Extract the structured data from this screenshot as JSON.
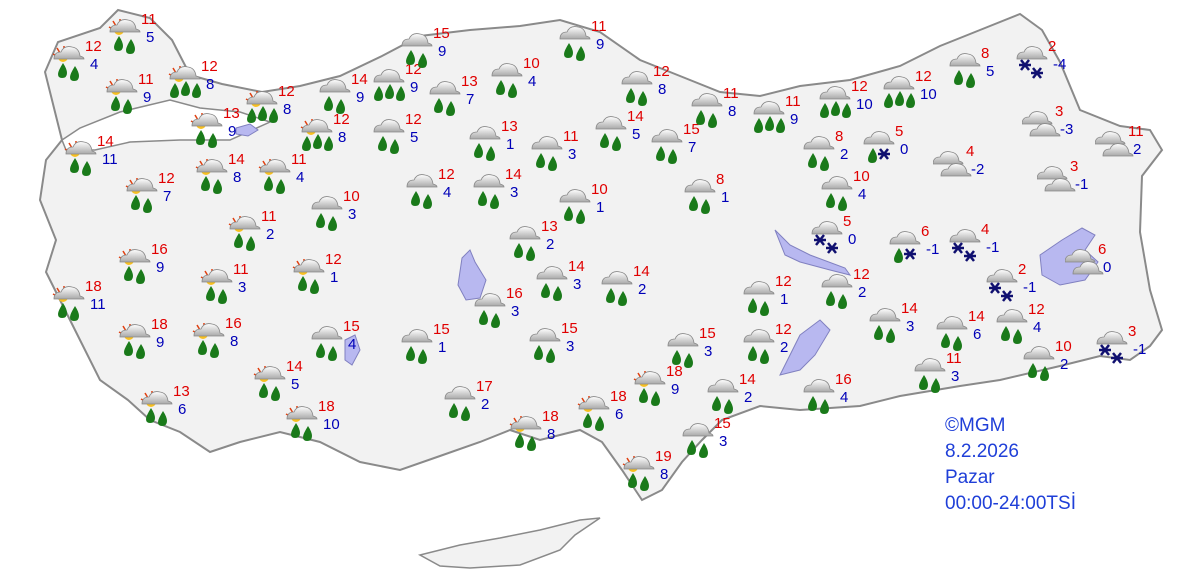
{
  "info": {
    "copyright": "©MGM",
    "date": "8.2.2026",
    "day": "Pazar",
    "period": "00:00-24:00TSİ"
  },
  "colors": {
    "max": "#e00000",
    "min": "#0000b8",
    "land": "#f2f2f2",
    "border": "#888888",
    "lake": "#b8b8f0",
    "drop": "#1a7a1a",
    "snow": "#101070"
  },
  "stations": [
    {
      "icon": "partly-cloudy-rain",
      "max": "11",
      "min": "5"
    },
    {
      "icon": "partly-cloudy-rain",
      "max": "12",
      "min": "4"
    },
    {
      "icon": "partly-cloudy-rain",
      "max": "11",
      "min": "9"
    },
    {
      "icon": "partly-cloudy-heavy-rain",
      "max": "12",
      "min": "8"
    },
    {
      "icon": "partly-cloudy-rain",
      "max": "13",
      "min": "9"
    },
    {
      "icon": "partly-cloudy-heavy-rain",
      "max": "12",
      "min": "8"
    },
    {
      "icon": "partly-cloudy-rain",
      "max": "14",
      "min": "11"
    },
    {
      "icon": "partly-cloudy-rain",
      "max": "12",
      "min": "7"
    },
    {
      "icon": "partly-cloudy-rain",
      "max": "14",
      "min": "8"
    },
    {
      "icon": "partly-cloudy-rain",
      "max": "11",
      "min": "4"
    },
    {
      "icon": "partly-cloudy-heavy-rain",
      "max": "12",
      "min": "8"
    },
    {
      "icon": "rain",
      "max": "14",
      "min": "9"
    },
    {
      "icon": "heavy-rain",
      "max": "12",
      "min": "9"
    },
    {
      "icon": "rain",
      "max": "15",
      "min": "9"
    },
    {
      "icon": "rain",
      "max": "13",
      "min": "7"
    },
    {
      "icon": "rain",
      "max": "10",
      "min": "4"
    },
    {
      "icon": "rain",
      "max": "12",
      "min": "5"
    },
    {
      "icon": "rain",
      "max": "13",
      "min": "1"
    },
    {
      "icon": "rain",
      "max": "11",
      "min": "3"
    },
    {
      "icon": "rain",
      "max": "11",
      "min": "9"
    },
    {
      "icon": "rain",
      "max": "12",
      "min": "8"
    },
    {
      "icon": "rain",
      "max": "14",
      "min": "5"
    },
    {
      "icon": "rain",
      "max": "15",
      "min": "7"
    },
    {
      "icon": "rain",
      "max": "11",
      "min": "8"
    },
    {
      "icon": "heavy-rain",
      "max": "11",
      "min": "9"
    },
    {
      "icon": "heavy-rain",
      "max": "12",
      "min": "10"
    },
    {
      "icon": "heavy-rain",
      "max": "12",
      "min": "10"
    },
    {
      "icon": "rain",
      "max": "8",
      "min": "5"
    },
    {
      "icon": "snow",
      "max": "2",
      "min": "-4"
    },
    {
      "icon": "rain",
      "max": "8",
      "min": "2"
    },
    {
      "icon": "rain-snow",
      "max": "5",
      "min": "0"
    },
    {
      "icon": "rain",
      "max": "10",
      "min": "4"
    },
    {
      "icon": "cloudy",
      "max": "4",
      "min": "-2"
    },
    {
      "icon": "cloudy",
      "max": "3",
      "min": "-3"
    },
    {
      "icon": "cloudy",
      "max": "11",
      "min": "2"
    },
    {
      "icon": "cloudy",
      "max": "3",
      "min": "-1"
    },
    {
      "icon": "rain",
      "max": "12",
      "min": "4"
    },
    {
      "icon": "rain",
      "max": "14",
      "min": "3"
    },
    {
      "icon": "rain",
      "max": "10",
      "min": "1"
    },
    {
      "icon": "rain",
      "max": "10",
      "min": "3"
    },
    {
      "icon": "partly-cloudy-rain",
      "max": "11",
      "min": "2"
    },
    {
      "icon": "rain",
      "max": "8",
      "min": "1"
    },
    {
      "icon": "partly-cloudy-rain",
      "max": "16",
      "min": "9"
    },
    {
      "icon": "partly-cloudy-rain",
      "max": "11",
      "min": "3"
    },
    {
      "icon": "partly-cloudy-rain",
      "max": "12",
      "min": "1"
    },
    {
      "icon": "partly-cloudy-rain",
      "max": "18",
      "min": "11"
    },
    {
      "icon": "partly-cloudy-rain",
      "max": "18",
      "min": "9"
    },
    {
      "icon": "partly-cloudy-rain",
      "max": "16",
      "min": "8"
    },
    {
      "icon": "rain",
      "max": "15",
      "min": "4"
    },
    {
      "icon": "partly-cloudy-rain",
      "max": "14",
      "min": "5"
    },
    {
      "icon": "partly-cloudy-rain",
      "max": "13",
      "min": "6"
    },
    {
      "icon": "partly-cloudy-rain",
      "max": "18",
      "min": "10"
    },
    {
      "icon": "rain",
      "max": "13",
      "min": "2"
    },
    {
      "icon": "rain",
      "max": "14",
      "min": "3"
    },
    {
      "icon": "rain",
      "max": "14",
      "min": "2"
    },
    {
      "icon": "rain",
      "max": "16",
      "min": "3"
    },
    {
      "icon": "rain",
      "max": "15",
      "min": "1"
    },
    {
      "icon": "rain",
      "max": "15",
      "min": "3"
    },
    {
      "icon": "rain",
      "max": "17",
      "min": "2"
    },
    {
      "icon": "partly-cloudy-rain",
      "max": "18",
      "min": "8"
    },
    {
      "icon": "partly-cloudy-rain",
      "max": "18",
      "min": "6"
    },
    {
      "icon": "partly-cloudy-rain",
      "max": "18",
      "min": "9"
    },
    {
      "icon": "partly-cloudy-rain",
      "max": "19",
      "min": "8"
    },
    {
      "icon": "rain",
      "max": "15",
      "min": "3"
    },
    {
      "icon": "rain",
      "max": "14",
      "min": "2"
    },
    {
      "icon": "rain",
      "max": "15",
      "min": "3"
    },
    {
      "icon": "rain",
      "max": "12",
      "min": "1"
    },
    {
      "icon": "rain",
      "max": "12",
      "min": "2"
    },
    {
      "icon": "rain",
      "max": "16",
      "min": "4"
    },
    {
      "icon": "snow",
      "max": "5",
      "min": "0"
    },
    {
      "icon": "rain",
      "max": "12",
      "min": "2"
    },
    {
      "icon": "rain-snow",
      "max": "6",
      "min": "-1"
    },
    {
      "icon": "snow",
      "max": "4",
      "min": "-1"
    },
    {
      "icon": "snow",
      "max": "2",
      "min": "-1"
    },
    {
      "icon": "rain",
      "max": "14",
      "min": "3"
    },
    {
      "icon": "rain",
      "max": "14",
      "min": "6"
    },
    {
      "icon": "rain",
      "max": "12",
      "min": "4"
    },
    {
      "icon": "rain",
      "max": "11",
      "min": "3"
    },
    {
      "icon": "rain",
      "max": "10",
      "min": "2"
    },
    {
      "icon": "cloudy",
      "max": "6",
      "min": "0"
    },
    {
      "icon": "snow",
      "max": "3",
      "min": "-1"
    }
  ]
}
